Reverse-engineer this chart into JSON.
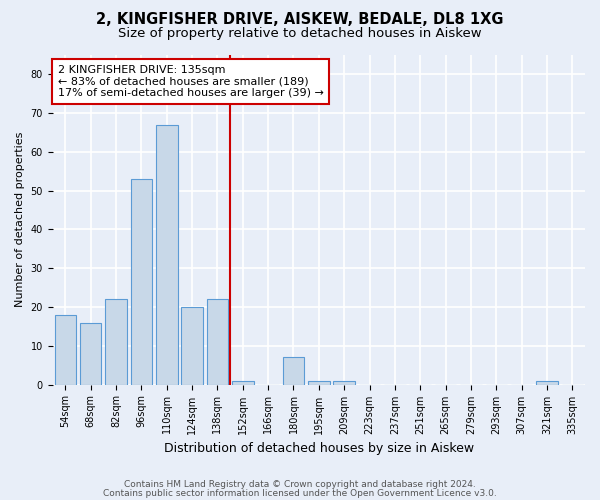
{
  "title1": "2, KINGFISHER DRIVE, AISKEW, BEDALE, DL8 1XG",
  "title2": "Size of property relative to detached houses in Aiskew",
  "xlabel": "Distribution of detached houses by size in Aiskew",
  "ylabel": "Number of detached properties",
  "footer1": "Contains HM Land Registry data © Crown copyright and database right 2024.",
  "footer2": "Contains public sector information licensed under the Open Government Licence v3.0.",
  "bin_labels": [
    "54sqm",
    "68sqm",
    "82sqm",
    "96sqm",
    "110sqm",
    "124sqm",
    "138sqm",
    "152sqm",
    "166sqm",
    "180sqm",
    "195sqm",
    "209sqm",
    "223sqm",
    "237sqm",
    "251sqm",
    "265sqm",
    "279sqm",
    "293sqm",
    "307sqm",
    "321sqm",
    "335sqm"
  ],
  "bar_heights": [
    18,
    16,
    22,
    53,
    67,
    20,
    22,
    1,
    0,
    7,
    1,
    1,
    0,
    0,
    0,
    0,
    0,
    0,
    0,
    1,
    0
  ],
  "bar_color": "#c8d8e8",
  "bar_edge_color": "#5b9bd5",
  "vline_bin_index": 6,
  "vline_color": "#cc0000",
  "annotation_line1": "2 KINGFISHER DRIVE: 135sqm",
  "annotation_line2": "← 83% of detached houses are smaller (189)",
  "annotation_line3": "17% of semi-detached houses are larger (39) →",
  "annotation_box_color": "#ffffff",
  "annotation_box_edge": "#cc0000",
  "ylim": [
    0,
    85
  ],
  "yticks": [
    0,
    10,
    20,
    30,
    40,
    50,
    60,
    70,
    80
  ],
  "background_color": "#e8eef8",
  "grid_color": "#ffffff",
  "title1_fontsize": 10.5,
  "title2_fontsize": 9.5,
  "xlabel_fontsize": 9,
  "ylabel_fontsize": 8,
  "tick_fontsize": 7,
  "footer_fontsize": 6.5,
  "annotation_fontsize": 8
}
